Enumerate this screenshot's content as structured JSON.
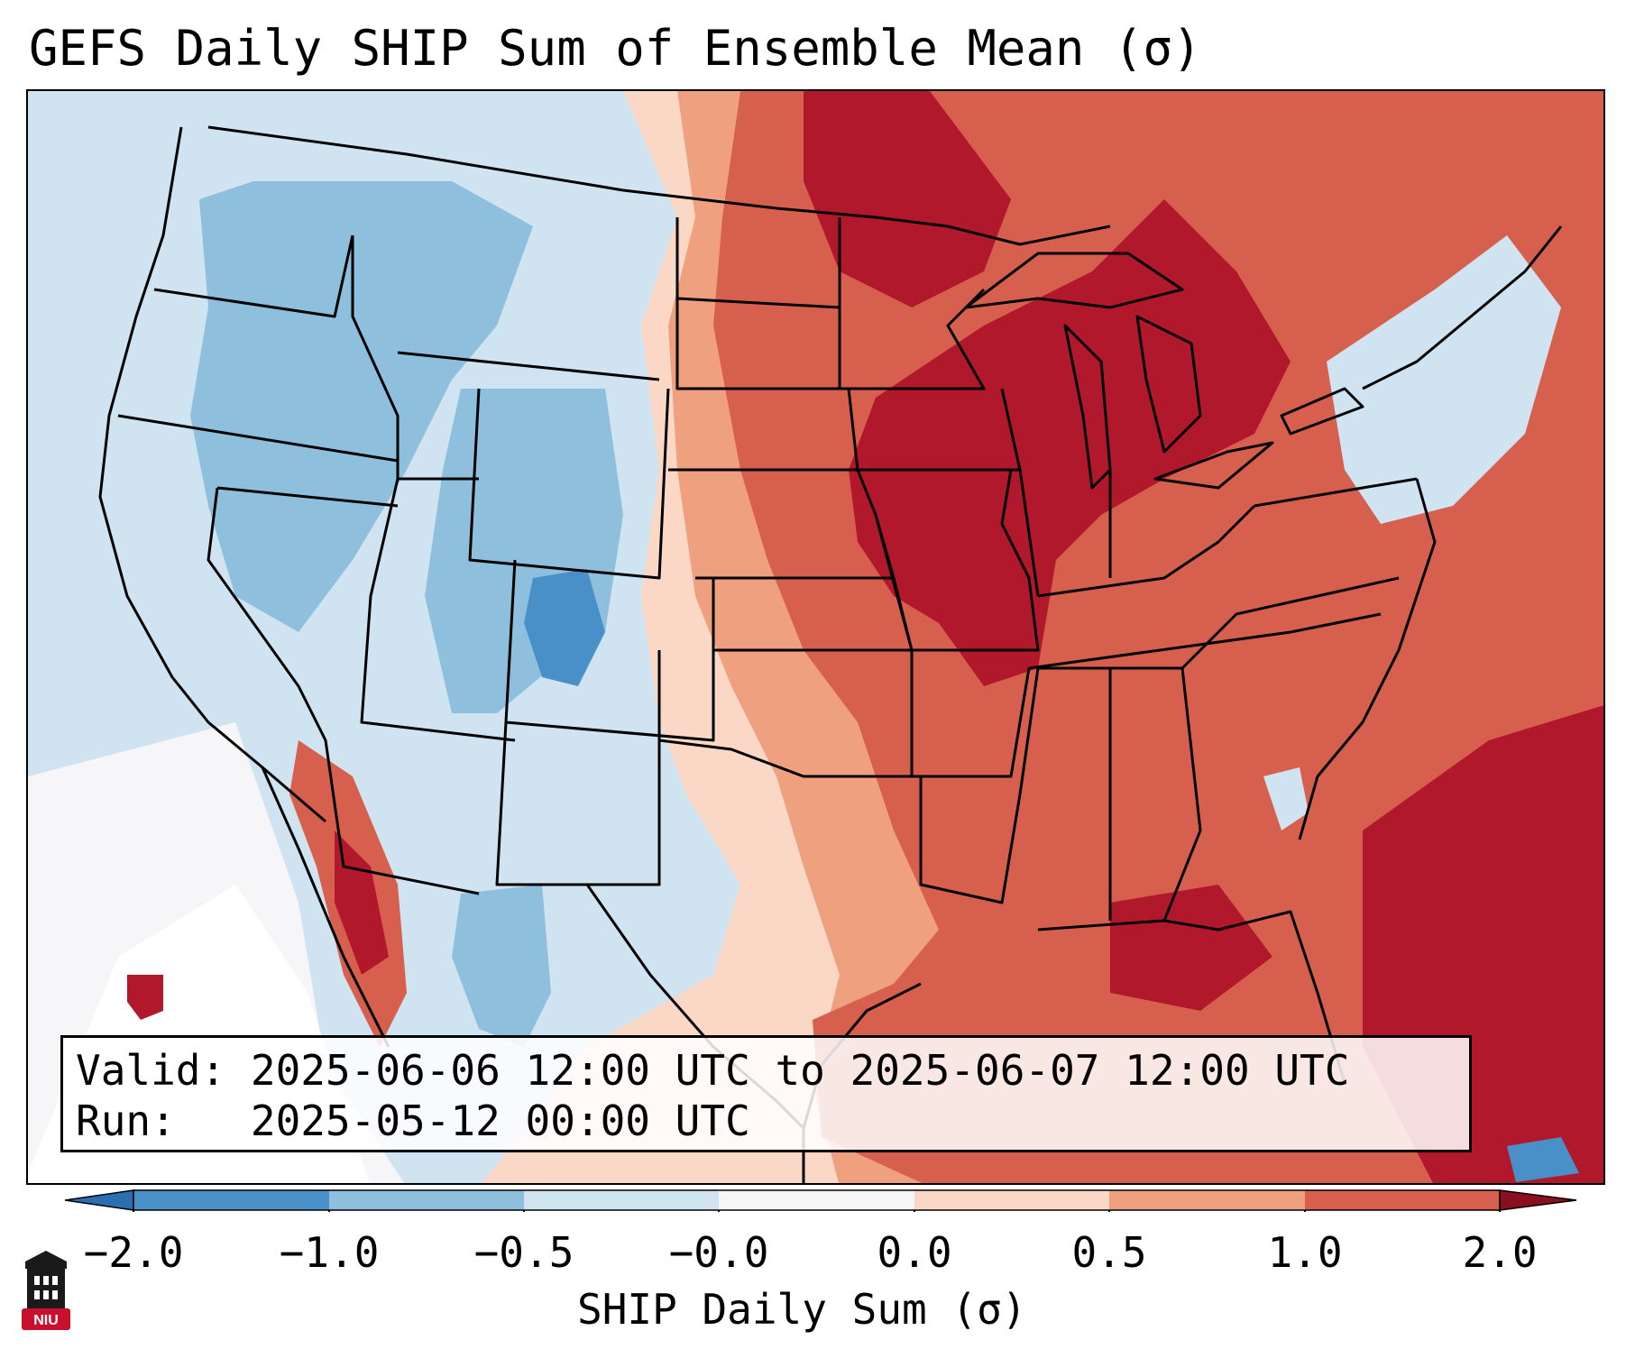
{
  "title": "GEFS Daily SHIP Sum of Ensemble Mean (σ)",
  "info": {
    "valid_label": "Valid:",
    "valid_value": "2025-06-06 12:00 UTC to 2025-06-07 12:00 UTC",
    "run_label": "Run:",
    "run_value": "2025-05-12 00:00 UTC"
  },
  "colorbar": {
    "label": "SHIP Daily Sum (σ)",
    "ticks": [
      "−2.0",
      "−1.0",
      "−0.5",
      "−0.0",
      "0.0",
      "0.5",
      "1.0",
      "2.0"
    ],
    "colors": [
      "#4a90c8",
      "#8ebfdd",
      "#cfe3f0",
      "#f6f6f8",
      "#fbd8c5",
      "#efa07f",
      "#d6604d",
      "#b2182b"
    ],
    "extend": "both",
    "under_color": "#2a6fb0",
    "over_color": "#8b0f1f"
  },
  "logo": {
    "text": "NIU",
    "colors": {
      "red": "#c8102e",
      "dark": "#1a1a1a"
    }
  },
  "map": {
    "region": "Contiguous United States",
    "west_pattern": "negative",
    "east_pattern": "positive",
    "colors": {
      "strong_neg": "#4a90c8",
      "mod_neg": "#8ebfdd",
      "weak_neg": "#cfe3f0",
      "neutral": "#f6f6f8",
      "weak_pos": "#fbd8c5",
      "mod_pos": "#efa07f",
      "pos": "#d6604d",
      "strong_pos": "#b2182b",
      "ocean_low": "#ffffff"
    }
  }
}
